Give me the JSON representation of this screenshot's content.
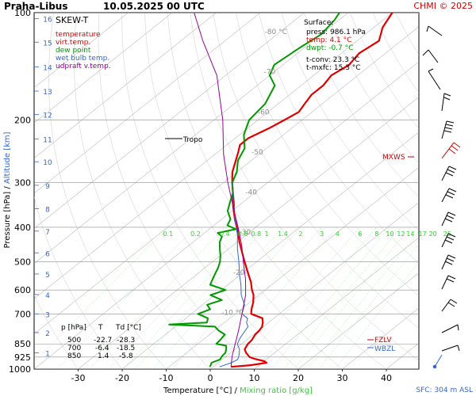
{
  "header": {
    "station": "Praha-Libus",
    "datetime": "10.05.2025 00 UTC",
    "copyright": "CHMI © 2025"
  },
  "axes": {
    "ylabel_pressure": "Pressure [hPa]",
    "ylabel_sep": "/",
    "ylabel_altitude": "Altitude [km]",
    "xlabel_temp": "Temperature [°C]",
    "xlabel_sep": "/",
    "xlabel_mix": "Mixing ratio [g/kg]"
  },
  "legend": {
    "title": "SKEW-T",
    "items": [
      {
        "label": "temperature",
        "color": "#e00000"
      },
      {
        "label": "virt.temp.",
        "color": "#e00000"
      },
      {
        "label": "dew point",
        "color": "#009900"
      },
      {
        "label": "wet bulb temp.",
        "color": "#3366cc"
      },
      {
        "label": "udpraft v.temp.",
        "color": "#990099"
      }
    ]
  },
  "surface": {
    "title": "Surface:",
    "press": "press: 986.1 hPa",
    "temp": "temp: 4.1 °C",
    "dwpt": "dwpt: -0.7 °C",
    "tconv": "t-conv: 23.3 °C",
    "tmxfc": "t-mxfc: 15.3 °C"
  },
  "table": {
    "headers": [
      "p [hPa]",
      "T",
      "Td [°C]"
    ],
    "rows": [
      [
        "500",
        "-22.7",
        "-28.3"
      ],
      [
        "700",
        "-6.4",
        "-18.5"
      ],
      [
        "850",
        "1.4",
        "-5.8"
      ]
    ]
  },
  "annotations": {
    "tropo": "Tropo",
    "mxws": "MXWS",
    "fzlv": "FZLV",
    "wbzl": "WBZL",
    "sfc": "SFC: 304 m ASL"
  },
  "chart_data": {
    "type": "line",
    "title": "SKEW-T",
    "xlabel": "Temperature [°C]",
    "ylabel": "Pressure [hPa]",
    "xlim": [
      -40,
      42
    ],
    "ylim": [
      1000,
      100
    ],
    "y_scale": "log",
    "x_ticks": [
      -30,
      -20,
      -10,
      0,
      10,
      20,
      30,
      40
    ],
    "p_ticks": [
      100,
      200,
      300,
      400,
      500,
      600,
      700,
      850,
      925,
      1000
    ],
    "alt_ticks": [
      "1",
      "2",
      "3",
      "4",
      "5",
      "6",
      "7",
      "8",
      "9",
      "10",
      "11",
      "12",
      "13",
      "14",
      "15",
      "16"
    ],
    "alt_tick_p": [
      900,
      790,
      700,
      618,
      541,
      472,
      410,
      355,
      305,
      262,
      226,
      193,
      166,
      142,
      121,
      104
    ],
    "iso_labels": [
      "-80 °C",
      "-70",
      "-60",
      "-50",
      "-40",
      "-30",
      "-20",
      "-10 °C"
    ],
    "iso_values": [
      -80,
      -70,
      -60,
      -50,
      -40,
      -30,
      -20,
      -10
    ],
    "mix_labels": [
      "0.1",
      "0.2",
      "0.4",
      "0.6",
      "0.8",
      "1",
      "1.4",
      "2",
      "3",
      "4",
      "6",
      "8",
      "10",
      "12",
      "14",
      "17",
      "20",
      "25"
    ],
    "mix_values": [
      0.1,
      0.2,
      0.4,
      0.6,
      0.8,
      1,
      1.4,
      2,
      3,
      4,
      6,
      8,
      10,
      12,
      14,
      17,
      20,
      25
    ],
    "series": [
      {
        "name": "temperature",
        "color": "#e00000",
        "points": [
          [
            986,
            4.1
          ],
          [
            975,
            8
          ],
          [
            960,
            11
          ],
          [
            950,
            10
          ],
          [
            935,
            7
          ],
          [
            925,
            5.5
          ],
          [
            900,
            3.5
          ],
          [
            880,
            2.2
          ],
          [
            850,
            1.4
          ],
          [
            830,
            1.2
          ],
          [
            800,
            0.4
          ],
          [
            780,
            0.2
          ],
          [
            760,
            -0.3
          ],
          [
            740,
            -1.3
          ],
          [
            720,
            -2.6
          ],
          [
            700,
            -6.4
          ],
          [
            680,
            -7.6
          ],
          [
            650,
            -9.2
          ],
          [
            620,
            -11.2
          ],
          [
            600,
            -13
          ],
          [
            570,
            -15.5
          ],
          [
            540,
            -18.5
          ],
          [
            500,
            -22.7
          ],
          [
            470,
            -26
          ],
          [
            440,
            -29.5
          ],
          [
            410,
            -33
          ],
          [
            380,
            -37
          ],
          [
            350,
            -41
          ],
          [
            320,
            -45
          ],
          [
            300,
            -48
          ],
          [
            280,
            -51
          ],
          [
            260,
            -53.5
          ],
          [
            245,
            -55.5
          ],
          [
            235,
            -57
          ],
          [
            225,
            -57
          ],
          [
            210,
            -55
          ],
          [
            200,
            -54
          ],
          [
            190,
            -53
          ],
          [
            180,
            -54
          ],
          [
            170,
            -55
          ],
          [
            160,
            -55
          ],
          [
            150,
            -56
          ],
          [
            140,
            -55
          ],
          [
            130,
            -56
          ],
          [
            120,
            -55
          ],
          [
            110,
            -58
          ],
          [
            100,
            -60
          ]
        ]
      },
      {
        "name": "dew point",
        "color": "#009900",
        "points": [
          [
            986,
            -0.7
          ],
          [
            975,
            -1
          ],
          [
            960,
            -1.5
          ],
          [
            940,
            -0.5
          ],
          [
            920,
            -1
          ],
          [
            900,
            -1.2
          ],
          [
            880,
            -2
          ],
          [
            860,
            -3
          ],
          [
            850,
            -5.8
          ],
          [
            830,
            -6
          ],
          [
            800,
            -6.5
          ],
          [
            780,
            -9
          ],
          [
            760,
            -11
          ],
          [
            750,
            -22
          ],
          [
            740,
            -14
          ],
          [
            720,
            -15
          ],
          [
            700,
            -18.5
          ],
          [
            680,
            -17
          ],
          [
            660,
            -19
          ],
          [
            640,
            -17
          ],
          [
            620,
            -21
          ],
          [
            600,
            -19
          ],
          [
            580,
            -24
          ],
          [
            560,
            -25
          ],
          [
            540,
            -26
          ],
          [
            520,
            -27
          ],
          [
            500,
            -28.3
          ],
          [
            480,
            -30
          ],
          [
            460,
            -32
          ],
          [
            440,
            -34
          ],
          [
            425,
            -35
          ],
          [
            415,
            -37
          ],
          [
            405,
            -34
          ],
          [
            395,
            -37
          ],
          [
            380,
            -38
          ],
          [
            360,
            -41
          ],
          [
            340,
            -43
          ],
          [
            320,
            -45
          ],
          [
            300,
            -48
          ],
          [
            280,
            -50
          ],
          [
            260,
            -53
          ],
          [
            240,
            -55
          ],
          [
            220,
            -59
          ],
          [
            200,
            -62
          ],
          [
            180,
            -63
          ],
          [
            160,
            -66
          ],
          [
            150,
            -70
          ],
          [
            140,
            -72
          ],
          [
            125,
            -71
          ],
          [
            115,
            -70
          ],
          [
            105,
            -71
          ],
          [
            100,
            -72
          ]
        ]
      },
      {
        "name": "wet bulb temp.",
        "color": "#3366cc",
        "points": [
          [
            986,
            1.5
          ],
          [
            960,
            3
          ],
          [
            940,
            3.5
          ],
          [
            925,
            3
          ],
          [
            900,
            2
          ],
          [
            880,
            1
          ],
          [
            850,
            -1
          ],
          [
            820,
            -2
          ],
          [
            800,
            -2.5
          ],
          [
            760,
            -3.5
          ],
          [
            740,
            -5
          ],
          [
            720,
            -6
          ],
          [
            700,
            -8.5
          ],
          [
            660,
            -10.5
          ],
          [
            620,
            -14
          ],
          [
            580,
            -17
          ],
          [
            540,
            -20.5
          ],
          [
            500,
            -24
          ],
          [
            460,
            -28
          ],
          [
            420,
            -32
          ],
          [
            380,
            -37
          ],
          [
            340,
            -42
          ],
          [
            300,
            -48
          ]
        ]
      },
      {
        "name": "udpraft v.temp.",
        "color": "#990099",
        "points": [
          [
            986,
            4.1
          ],
          [
            925,
            1.5
          ],
          [
            850,
            -1.5
          ],
          [
            780,
            -4.5
          ],
          [
            700,
            -8.5
          ],
          [
            620,
            -13
          ],
          [
            560,
            -17.5
          ],
          [
            500,
            -23
          ],
          [
            450,
            -28
          ],
          [
            400,
            -34
          ],
          [
            350,
            -41
          ],
          [
            300,
            -49
          ],
          [
            250,
            -58
          ],
          [
            200,
            -68
          ],
          [
            150,
            -82
          ],
          [
            120,
            -95
          ],
          [
            100,
            -105
          ]
        ]
      }
    ],
    "tropopause_p": 222
  }
}
